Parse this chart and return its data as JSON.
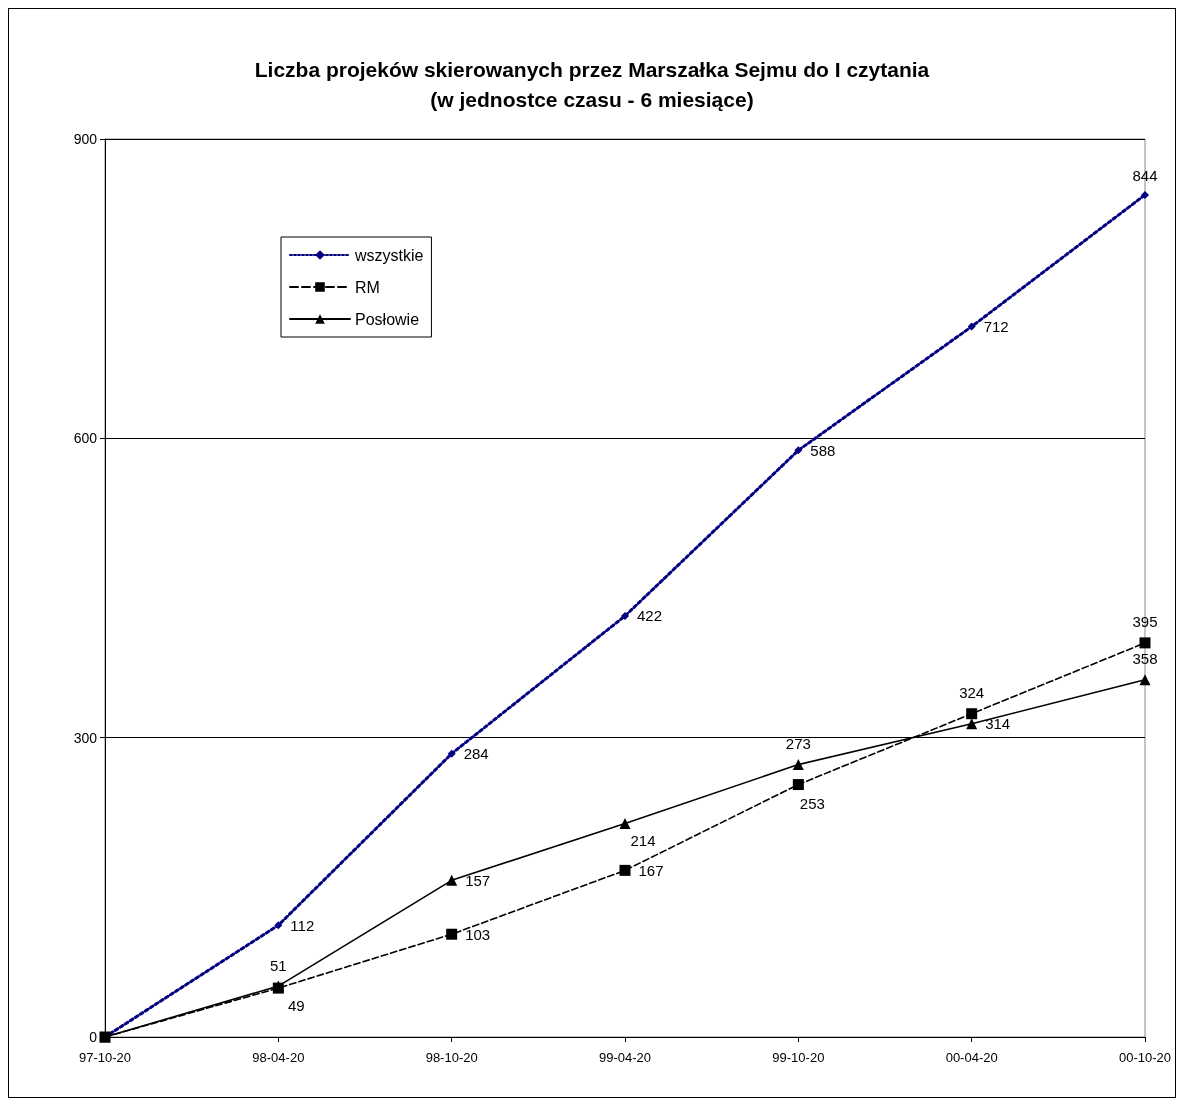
{
  "chart_data": {
    "type": "line",
    "title": "Liczba projeków skierowanych przez Marszałka Sejmu do I czytania\n(w jednostce czasu - 6 miesiące)",
    "categories": [
      "97-10-20",
      "98-04-20",
      "98-10-20",
      "99-04-20",
      "99-10-20",
      "00-04-20",
      "00-10-20"
    ],
    "series": [
      {
        "name": "wszystkie",
        "color": "#000080",
        "marker": "diamond",
        "line_style": "dotted",
        "values": [
          0,
          112,
          284,
          422,
          588,
          712,
          844
        ],
        "value_labels": [
          null,
          "112",
          "284",
          "422",
          "588",
          "712",
          "844"
        ]
      },
      {
        "name": "RM",
        "color": "#000000",
        "marker": "square",
        "line_style": "dashed",
        "values": [
          0,
          49,
          103,
          167,
          253,
          324,
          395
        ],
        "value_labels": [
          null,
          "49",
          "103",
          "167",
          "253",
          "324",
          "395"
        ]
      },
      {
        "name": "Posłowie",
        "color": "#000000",
        "marker": "triangle",
        "line_style": "solid",
        "values": [
          0,
          51,
          157,
          214,
          273,
          314,
          358
        ],
        "value_labels": [
          null,
          "51",
          "157",
          "214",
          "273",
          "314",
          "358"
        ]
      }
    ],
    "ylim": [
      0,
      900
    ],
    "yticks": [
      0,
      300,
      600,
      900
    ],
    "grid": "y",
    "legend": "top left"
  }
}
